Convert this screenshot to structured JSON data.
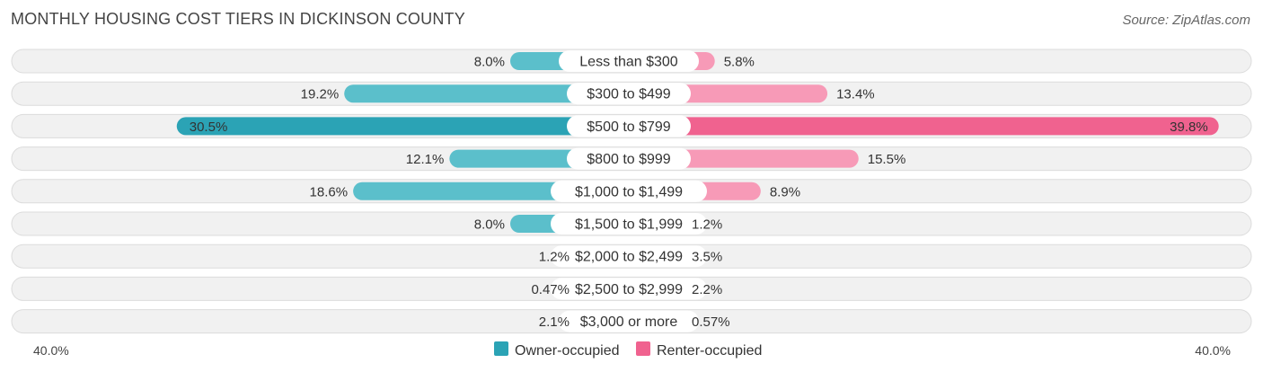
{
  "chart_data": {
    "type": "bar",
    "orientation": "horizontal-diverging",
    "title": "MONTHLY HOUSING COST TIERS IN DICKINSON COUNTY",
    "source": "Source: ZipAtlas.com",
    "categories": [
      "Less than $300",
      "$300 to $499",
      "$500 to $799",
      "$800 to $999",
      "$1,000 to $1,499",
      "$1,500 to $1,999",
      "$2,000 to $2,499",
      "$2,500 to $2,999",
      "$3,000 or more"
    ],
    "series": [
      {
        "name": "Owner-occupied",
        "color": "#5bbfcb",
        "highlight_color": "#2ba3b5",
        "values": [
          8.0,
          19.2,
          30.5,
          12.1,
          18.6,
          8.0,
          1.2,
          0.47,
          2.1
        ],
        "labels": [
          "8.0%",
          "19.2%",
          "30.5%",
          "12.1%",
          "18.6%",
          "8.0%",
          "1.2%",
          "0.47%",
          "2.1%"
        ]
      },
      {
        "name": "Renter-occupied",
        "color": "#f79ab7",
        "highlight_color": "#f0628f",
        "values": [
          5.8,
          13.4,
          39.8,
          15.5,
          8.9,
          1.2,
          3.5,
          2.2,
          0.57
        ],
        "labels": [
          "5.8%",
          "13.4%",
          "39.8%",
          "15.5%",
          "8.9%",
          "1.2%",
          "3.5%",
          "2.2%",
          "0.57%"
        ]
      }
    ],
    "xlim": [
      -40,
      40
    ],
    "axis_left_label": "40.0%",
    "axis_right_label": "40.0%",
    "legend_position": "bottom-center"
  }
}
